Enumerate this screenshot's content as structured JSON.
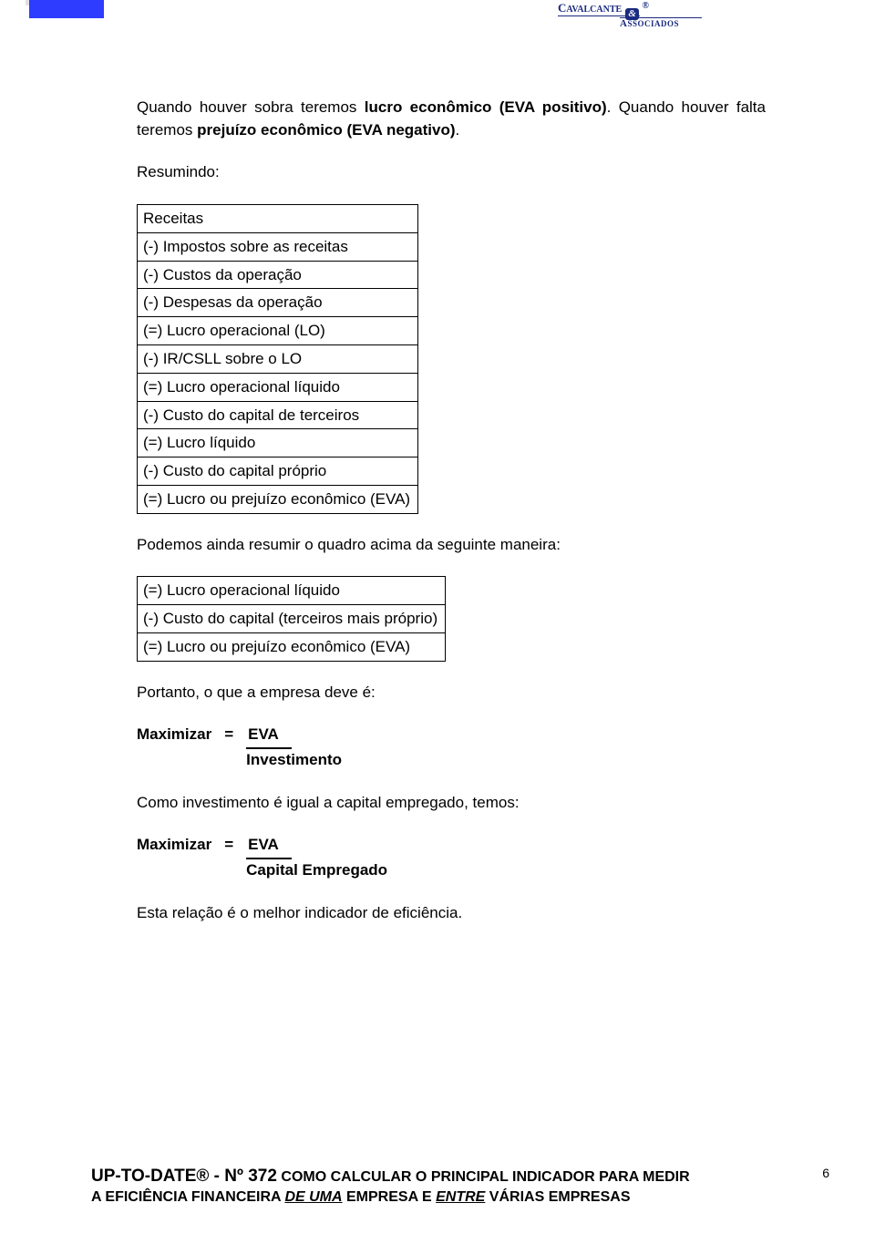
{
  "colors": {
    "sidebar_blue": "#2e3cff",
    "text": "#000000",
    "logo": "#1a2a80",
    "bg": "#ffffff"
  },
  "typography": {
    "body_family": "Verdana",
    "body_size_pt": 12,
    "footer_size_pt": 11,
    "logo_family": "Times New Roman"
  },
  "header": {
    "line1_part1": "C",
    "line1_part2": "AVALCANTE",
    "amp": "&",
    "line2_part1": "A",
    "line2_part2": "SSOCIADOS",
    "trademark": "®"
  },
  "intro": {
    "p1_a": "Quando houver sobra teremos ",
    "p1_b": "lucro econômico (EVA positivo)",
    "p1_c": ". Quando houver falta teremos ",
    "p1_d": "prejuízo econômico (EVA negativo)",
    "p1_e": ".",
    "p2": "Resumindo:"
  },
  "table1": {
    "rows": [
      "Receitas",
      "(-) Impostos sobre as receitas",
      "(-) Custos da operação",
      "(-) Despesas da operação",
      "(=) Lucro operacional (LO)",
      "(-) IR/CSLL sobre o LO",
      "(=) Lucro operacional líquido",
      "(-) Custo do capital de terceiros",
      "(=) Lucro líquido",
      "(-) Custo do capital próprio",
      "(=) Lucro ou prejuízo econômico (EVA)"
    ]
  },
  "mid1": "Podemos ainda resumir o quadro acima da seguinte maneira:",
  "table2": {
    "rows": [
      "(=) Lucro operacional líquido",
      "(-) Custo do capital (terceiros mais próprio)",
      "(=) Lucro ou prejuízo econômico (EVA)"
    ]
  },
  "mid2": "Portanto, o que a empresa deve é:",
  "formula1": {
    "lhs": "Maximizar",
    "eq": "=",
    "top": "EVA",
    "bot": "Investimento"
  },
  "mid3": "Como investimento é igual a capital empregado, temos:",
  "formula2": {
    "lhs": "Maximizar",
    "eq": "=",
    "top": "EVA",
    "bot": "Capital Empregado"
  },
  "closing": "Esta relação é o melhor indicador de eficiência.",
  "footer": {
    "brand": "UP-TO-DATE",
    "reg": "®",
    "dash": " - ",
    "num_label": "Nº 372",
    "rest1": " COMO CALCULAR O PRINCIPAL INDICADOR PARA MEDIR",
    "line2a": "A EFICIÊNCIA FINANCEIRA ",
    "line2b": "DE UMA",
    "line2c": " EMPRESA E ",
    "line2d": "ENTRE",
    "line2e": " VÁRIAS EMPRESAS",
    "page": "6"
  }
}
